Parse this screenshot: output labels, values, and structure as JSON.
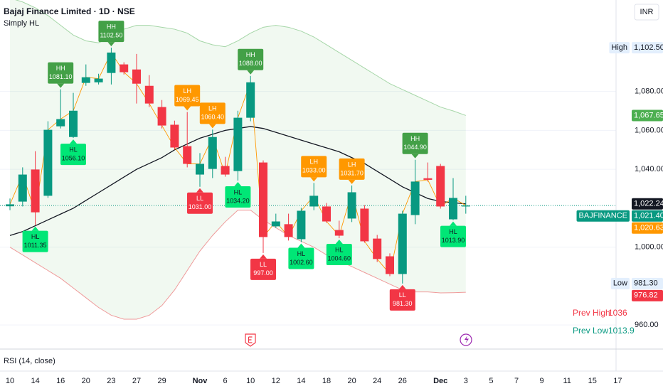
{
  "header": {
    "title": "Bajaj Finance Limited · 1D · NSE",
    "indicator": "Simply HL",
    "currency": "INR"
  },
  "chart_data": {
    "type": "candlestick",
    "categories": [
      "10",
      null,
      "14",
      null,
      "16",
      null,
      "20",
      null,
      "23",
      null,
      "27",
      null,
      "29",
      null,
      null,
      "Nov",
      null,
      "6",
      null,
      "10",
      null,
      "12",
      null,
      "14",
      null,
      "18",
      null,
      "20",
      null,
      "24",
      null,
      "26",
      null,
      null,
      "Dec",
      null,
      "3",
      null,
      "5",
      null,
      "7",
      null,
      "9",
      null,
      "11",
      null,
      "15",
      null,
      "17"
    ],
    "open": [
      1021,
      1023.4,
      1039.9,
      1026.4,
      1062.1,
      1056.6,
      1084.4,
      1084.7,
      1089.5,
      1093.9,
      1091.3,
      1082.9,
      1072,
      1062.9,
      1051.9,
      1037.3,
      1040.2,
      1041.7,
      1039.1,
      1066.5,
      1043.5,
      1010.7,
      1011.8,
      1004.1,
      1020.9,
      1020.9,
      1008.8,
      1014.7,
      1019.8,
      1004.4,
      995.3,
      986.2,
      1016.5,
      1035.4,
      1041.7,
      1014.3,
      1020.9,
      null,
      null,
      null,
      null,
      null,
      null,
      null,
      null,
      null,
      null,
      null,
      null
    ],
    "high": [
      1025,
      1041,
      1049.3,
      1064.7,
      1081.1,
      1079.3,
      1093.9,
      1089.1,
      1102.5,
      1095,
      1099.3,
      1088.4,
      1075.6,
      1065,
      1069.45,
      1048.3,
      1060.4,
      1046.4,
      1070.1,
      1088,
      1044.6,
      1017.2,
      1017.2,
      1020.2,
      1033,
      1022.7,
      1013.6,
      1031.7,
      1021.6,
      1006.3,
      996.8,
      1018.7,
      1044.9,
      1043.5,
      1042.8,
      1035.5,
      1026.4,
      null,
      null,
      null,
      null,
      null,
      null,
      null,
      null,
      null,
      null,
      null,
      null
    ],
    "low": [
      1019,
      1020.9,
      1011.35,
      1025.3,
      1061,
      1056.1,
      1082.9,
      1083.6,
      1083.6,
      1088.7,
      1073.8,
      1072,
      1061,
      1050.1,
      1041,
      1031,
      1035.5,
      1036.2,
      1034.2,
      1064.7,
      997,
      1009.9,
      1003.4,
      1002.6,
      1019,
      1012.5,
      1004.6,
      1012.9,
      1002.3,
      992.4,
      985.1,
      981.3,
      1011.8,
      1033.7,
      1019.8,
      1013.9,
      1017.2,
      null,
      null,
      null,
      null,
      null,
      null,
      null,
      null,
      null,
      null,
      null,
      null
    ],
    "close": [
      1022,
      1037.3,
      1017.9,
      1060.3,
      1065.8,
      1070.1,
      1087.3,
      1086.6,
      1100,
      1089.9,
      1084,
      1073.8,
      1062.5,
      1051.2,
      1042.8,
      1042.8,
      1056.6,
      1037.3,
      1066.5,
      1084.7,
      1005.2,
      1013.2,
      1005.2,
      1018.7,
      1026.4,
      1013.2,
      1005.9,
      1028.2,
      1003,
      993.9,
      986.2,
      1017.2,
      1033.7,
      1034.6,
      1020.9,
      1025.3,
      1021.4,
      null,
      null,
      null,
      null,
      null,
      null,
      null,
      null,
      null,
      null,
      null,
      null
    ],
    "up_color": "#089981",
    "down_color": "#f23645",
    "line_color": "#ff9800",
    "bands": {
      "upper": [
        1128,
        1126,
        1123,
        1119,
        1114,
        1109,
        1106,
        1105,
        1108,
        1112,
        1114,
        1114,
        1113,
        1112,
        1110,
        1106,
        1104,
        1103,
        1106,
        1110,
        1113,
        1114,
        1113,
        1111,
        1108,
        1104,
        1100,
        1096,
        1092,
        1088,
        1084,
        1081,
        1078,
        1075,
        1072,
        1070,
        1067.65,
        null,
        null,
        null,
        null,
        null,
        null,
        null,
        null,
        null,
        null,
        null,
        null
      ],
      "basis": [
        1006,
        1008,
        1011,
        1014,
        1017,
        1020,
        1024,
        1028,
        1032,
        1036,
        1040,
        1043,
        1046,
        1050,
        1053,
        1056,
        1058,
        1060,
        1061,
        1062,
        1061,
        1059,
        1057,
        1055,
        1053,
        1051,
        1049,
        1046,
        1043,
        1039,
        1035,
        1031,
        1028,
        1025,
        1023.5,
        1022.8,
        1022.24,
        null,
        null,
        null,
        null,
        null,
        null,
        null,
        null,
        null,
        null,
        null,
        null
      ],
      "lower": [
        1000,
        996,
        992,
        988,
        984,
        979,
        974,
        969,
        965,
        963,
        963,
        965,
        970,
        978,
        988,
        998,
        1006,
        1013,
        1019,
        1019,
        1014,
        1010,
        1006,
        1003,
        1000,
        996,
        993,
        990,
        987,
        984,
        981,
        978,
        977,
        977,
        976.5,
        976.6,
        976.82,
        null,
        null,
        null,
        null,
        null,
        null,
        null,
        null,
        null,
        null,
        null,
        null
      ],
      "upper_color": "#a5d6a7",
      "basis_color": "#131722",
      "lower_color": "#ef9a9a",
      "fill": "#4caf50"
    },
    "pivots": {
      "kinds": [
        null,
        null,
        "HL",
        null,
        "HH",
        "HL",
        null,
        null,
        "HH",
        null,
        null,
        null,
        null,
        null,
        "LH",
        "LL",
        "LH",
        null,
        "HL",
        "HH",
        "LL",
        null,
        null,
        "HL",
        "LH",
        null,
        "HL",
        "LH",
        null,
        null,
        null,
        "LL",
        "HH",
        null,
        null,
        "HL",
        null,
        null,
        null,
        null,
        null,
        null,
        null,
        null,
        null,
        null,
        null,
        null,
        null
      ],
      "values": [
        null,
        null,
        1011.35,
        null,
        1081.1,
        1056.1,
        null,
        null,
        1102.5,
        null,
        null,
        null,
        null,
        null,
        1069.45,
        1031,
        1060.4,
        null,
        1034.2,
        1088,
        997,
        null,
        null,
        1002.6,
        1033,
        null,
        1004.6,
        1031.7,
        null,
        null,
        null,
        981.3,
        1044.9,
        null,
        null,
        1013.9,
        null,
        null,
        null,
        null,
        null,
        null,
        null,
        null,
        null,
        null,
        null,
        null,
        null
      ],
      "value_labels": [
        null,
        null,
        "1011.35",
        null,
        "1081.10",
        "1056.10",
        null,
        null,
        "1102.50",
        null,
        null,
        null,
        null,
        null,
        "1069.45",
        "1031.00",
        "1060.40",
        null,
        "1034.20",
        "1088.00",
        "997.00",
        null,
        null,
        "1002.60",
        "1033.00",
        null,
        "1004.60",
        "1031.70",
        null,
        null,
        null,
        "981.30",
        "1044.90",
        null,
        null,
        "1013.90",
        null,
        null,
        null,
        null,
        null,
        null,
        null,
        null,
        null,
        null,
        null,
        null,
        null
      ],
      "colors": {
        "HH": "#43a047",
        "HL": "#00e676",
        "LH": "#ff9800",
        "LL": "#f23645"
      },
      "text_colors": {
        "HH": "#ffffff",
        "HL": "#131722",
        "LH": "#ffffff",
        "LL": "#ffffff"
      },
      "above": {
        "HH": true,
        "HL": false,
        "LH": true,
        "LL": false
      }
    },
    "ylim": [
      948,
      1127
    ],
    "yticks": [
      {
        "value": 960,
        "label": "960.00"
      },
      {
        "value": 1000,
        "label": "1,000.00"
      },
      {
        "value": 1040,
        "label": "1,040.00"
      },
      {
        "value": 1060,
        "label": "1,060.00"
      },
      {
        "value": 1080,
        "label": "1,080.00"
      }
    ],
    "grid": true,
    "price_labels": [
      {
        "name": "High",
        "value": 1102.5,
        "label": "1,102.50",
        "color": "#e3effd",
        "text_color": "#131722"
      },
      {
        "value": 1067.65,
        "label": "1,067.65",
        "color": "#4caf50",
        "text_color": "#ffffff"
      },
      {
        "value": 1022.24,
        "label": "1,022.24",
        "color": "#131722",
        "text_color": "#ffffff"
      },
      {
        "name": "BAJFINANCE",
        "value": 1021.4,
        "label": "1,021.40",
        "color": "#089981",
        "text_color": "#ffffff"
      },
      {
        "value": 1020.63,
        "label": "1,020.63",
        "color": "#ff9800",
        "text_color": "#ffffff"
      },
      {
        "name": "Low",
        "value": 981.3,
        "label": "981.30",
        "color": "#e3effd",
        "text_color": "#131722"
      },
      {
        "value": 976.82,
        "label": "976.82",
        "color": "#f23645",
        "text_color": "#ffffff"
      }
    ]
  },
  "prev_levels": [
    {
      "name": "Prev High",
      "value": 1036,
      "color": "#f23645"
    },
    {
      "name": "Prev Low",
      "value": 1013.9,
      "color": "#089981"
    }
  ],
  "rsi": {
    "title": "RSI (14, close)"
  }
}
